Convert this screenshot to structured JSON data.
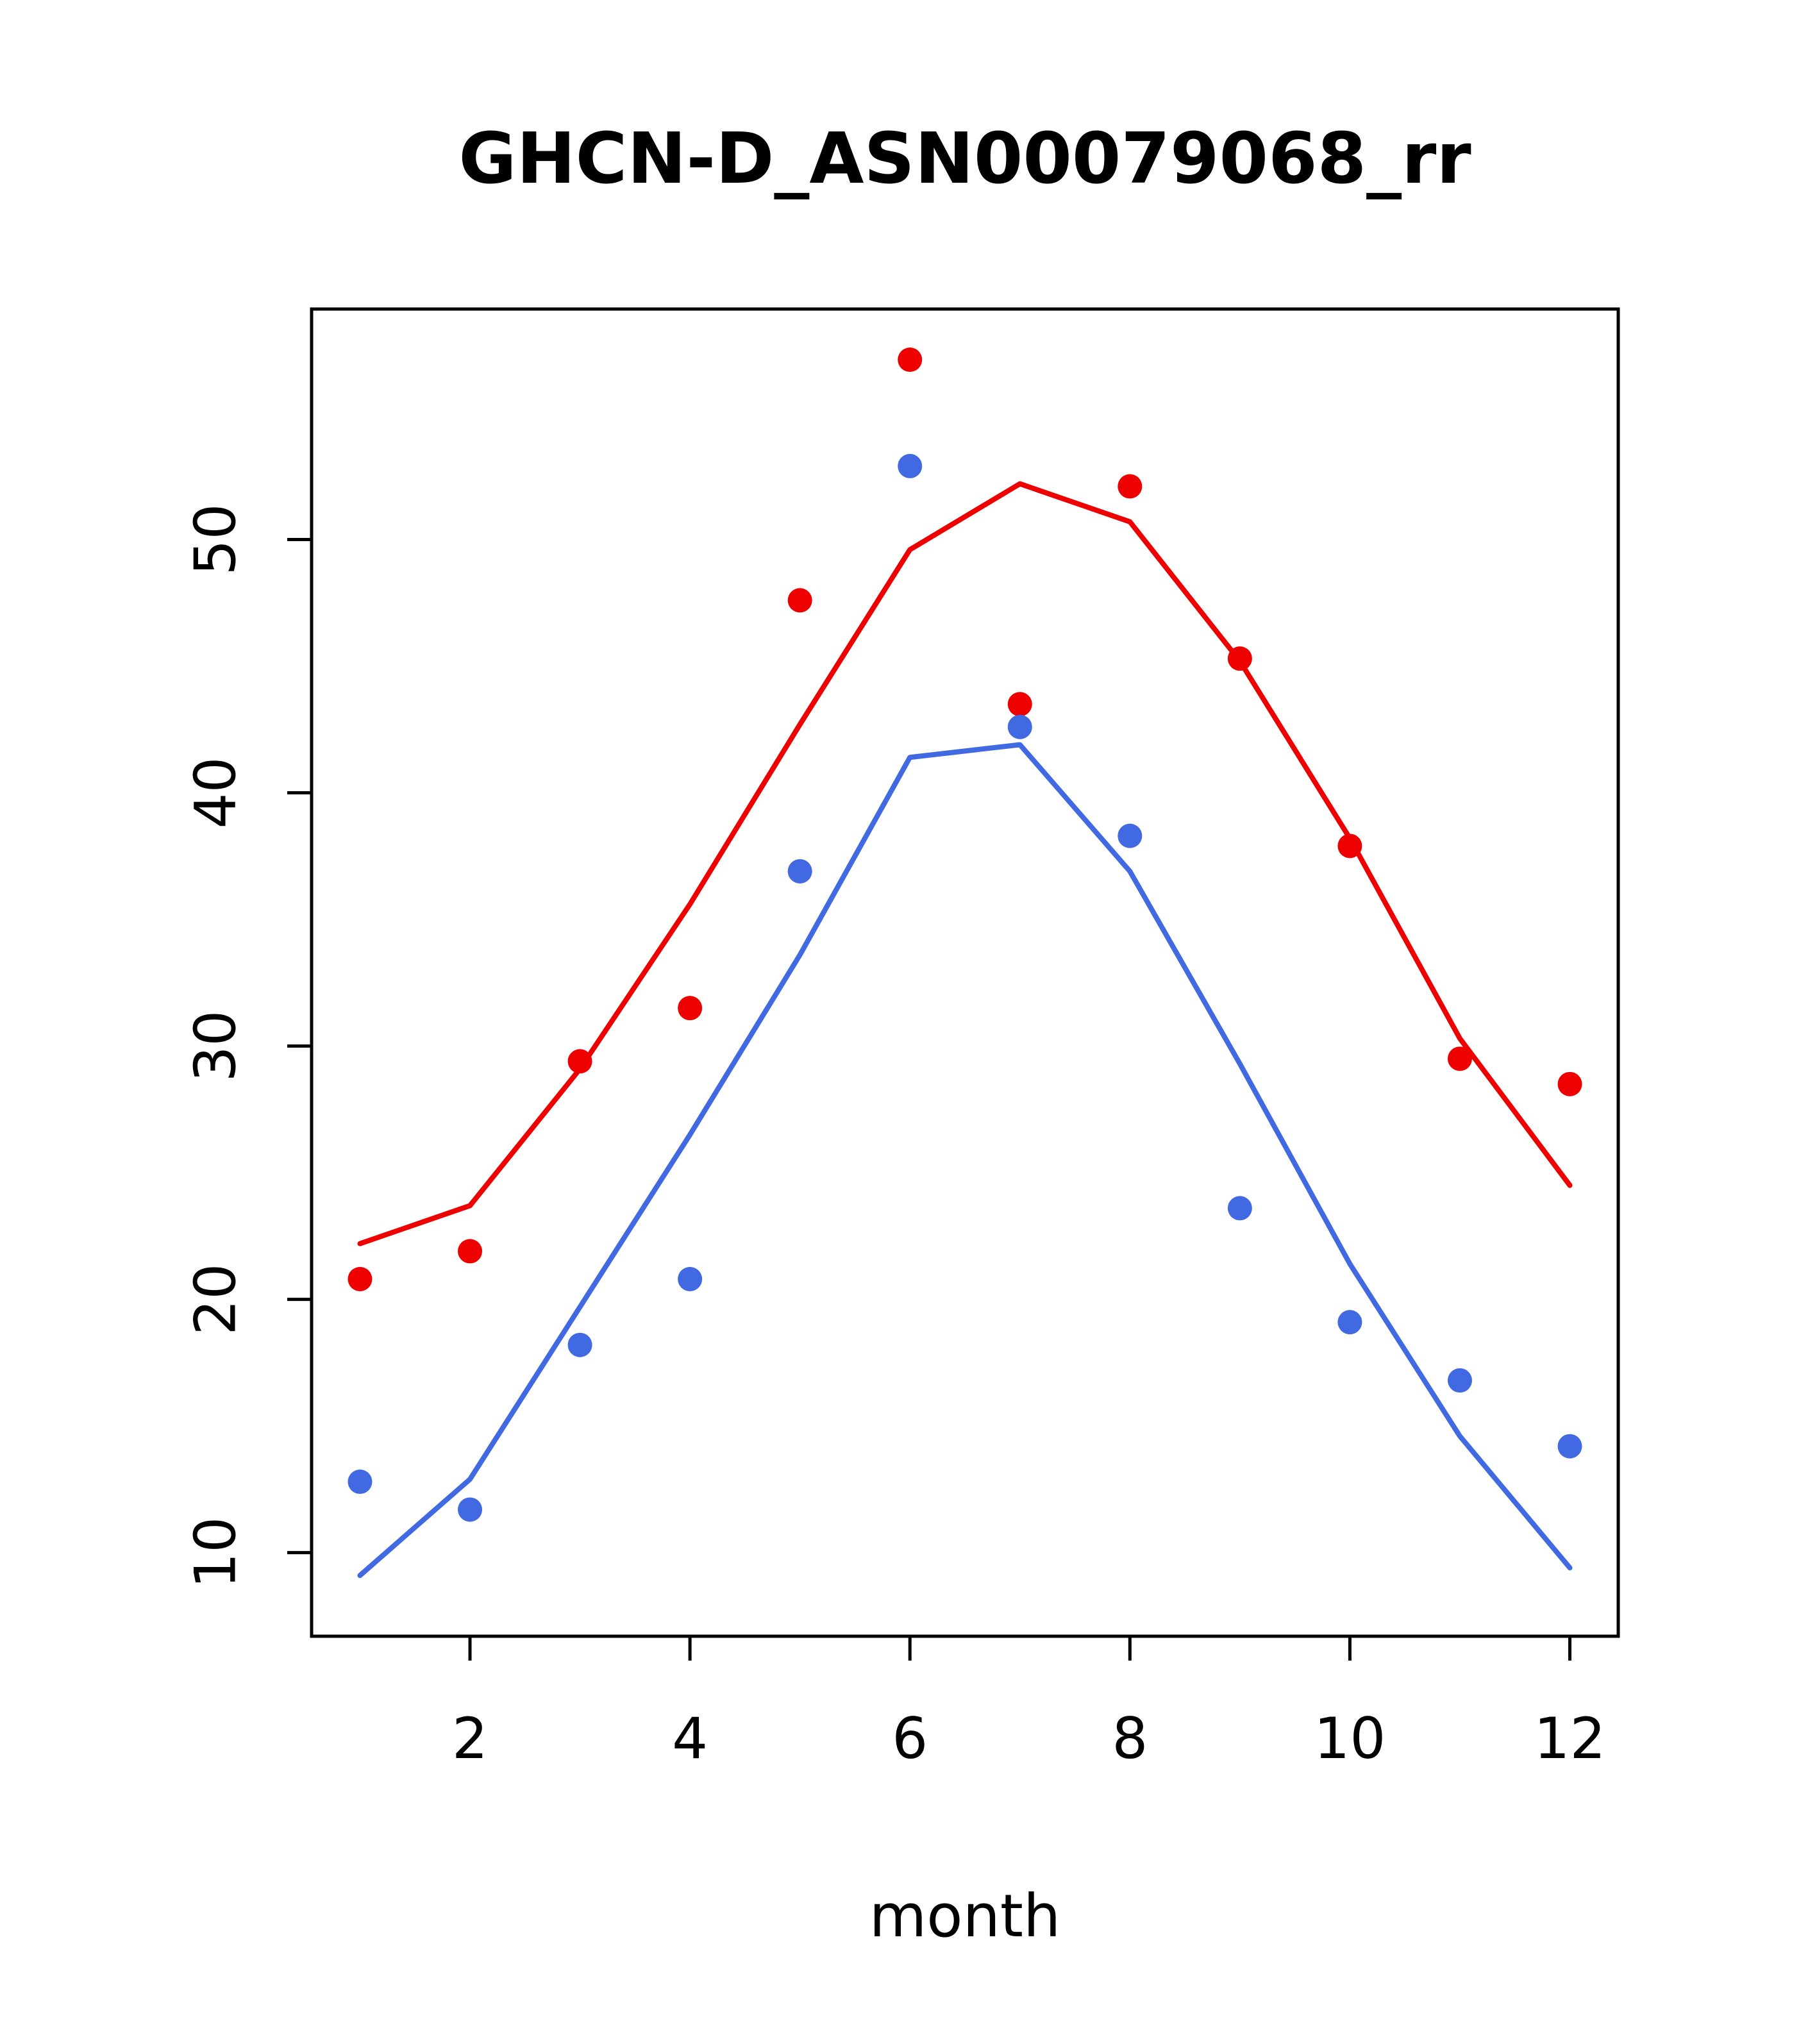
{
  "chart_data": {
    "type": "line",
    "title": "GHCN-D_ASN00079068_rr",
    "xlabel": "month",
    "ylabel": "",
    "x": [
      1,
      2,
      3,
      4,
      5,
      6,
      7,
      8,
      9,
      10,
      11,
      12
    ],
    "xticks": [
      2,
      4,
      6,
      8,
      10,
      12
    ],
    "yticks": [
      10,
      20,
      30,
      40,
      50
    ],
    "xlim": [
      0.56,
      12.44
    ],
    "ylim": [
      6.7,
      59.1
    ],
    "grid": false,
    "legend": "none",
    "colors": {
      "red": "#ee0000",
      "blue": "#4169e1"
    },
    "series": [
      {
        "name": "red-points",
        "style": "points",
        "color": "#ee0000",
        "values": [
          20.8,
          21.9,
          29.4,
          31.5,
          47.6,
          57.1,
          43.5,
          52.1,
          45.3,
          37.9,
          29.5,
          28.5
        ]
      },
      {
        "name": "red-line",
        "style": "line",
        "color": "#ee0000",
        "values": [
          22.2,
          23.7,
          29.1,
          35.6,
          42.7,
          49.6,
          52.2,
          50.7,
          45.2,
          38.2,
          30.3,
          24.5
        ]
      },
      {
        "name": "blue-points",
        "style": "points",
        "color": "#4169e1",
        "values": [
          12.8,
          11.7,
          18.2,
          20.8,
          36.9,
          52.9,
          42.6,
          38.3,
          23.6,
          19.1,
          16.8,
          14.2
        ]
      },
      {
        "name": "blue-line",
        "style": "line",
        "color": "#4169e1",
        "values": [
          9.1,
          12.9,
          19.7,
          26.5,
          33.6,
          41.4,
          41.9,
          36.9,
          29.3,
          21.4,
          14.6,
          9.4
        ]
      }
    ]
  }
}
